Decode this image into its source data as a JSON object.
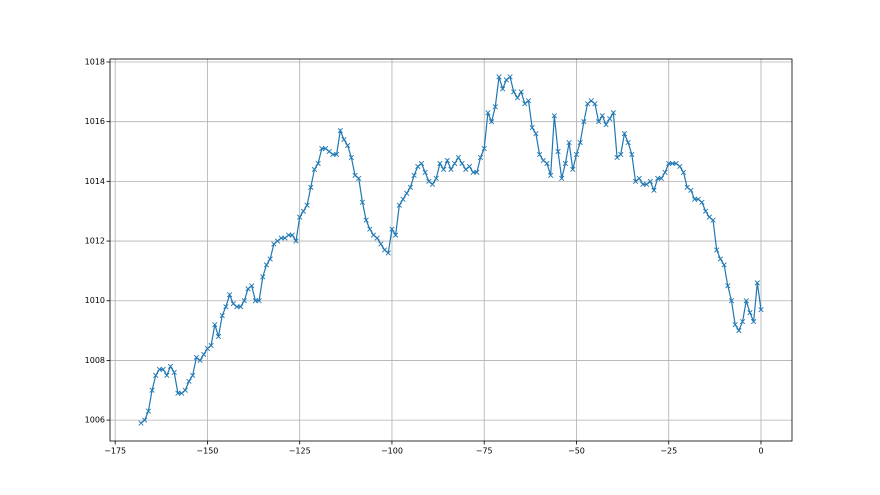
{
  "chart_data": {
    "type": "line",
    "color": "#1f77b4",
    "marker": "x",
    "grid": true,
    "xlim": [
      -176.4,
      8.4
    ],
    "ylim": [
      1005.3,
      1018.1
    ],
    "xticks": [
      {
        "value": -175,
        "label": "−175"
      },
      {
        "value": -150,
        "label": "−150"
      },
      {
        "value": -125,
        "label": "−125"
      },
      {
        "value": -100,
        "label": "−100"
      },
      {
        "value": -75,
        "label": "−75"
      },
      {
        "value": -50,
        "label": "−50"
      },
      {
        "value": -25,
        "label": "−25"
      },
      0
    ],
    "yticks": [
      1006,
      1008,
      1010,
      1012,
      1014,
      1016,
      1018
    ],
    "x": [
      -168,
      -167,
      -166,
      -165,
      -164,
      -163,
      -162,
      -161,
      -160,
      -159,
      -158,
      -157,
      -156,
      -155,
      -154,
      -153,
      -152,
      -151,
      -150,
      -149,
      -148,
      -147,
      -146,
      -145,
      -144,
      -143,
      -142,
      -141,
      -140,
      -139,
      -138,
      -137,
      -136,
      -135,
      -134,
      -133,
      -132,
      -131,
      -130,
      -129,
      -128,
      -127,
      -126,
      -125,
      -124,
      -123,
      -122,
      -121,
      -120,
      -119,
      -118,
      -117,
      -116,
      -115,
      -114,
      -113,
      -112,
      -111,
      -110,
      -109,
      -108,
      -107,
      -106,
      -105,
      -104,
      -103,
      -102,
      -101,
      -100,
      -99,
      -98,
      -97,
      -96,
      -95,
      -94,
      -93,
      -92,
      -91,
      -90,
      -89,
      -88,
      -87,
      -86,
      -85,
      -84,
      -83,
      -82,
      -81,
      -80,
      -79,
      -78,
      -77,
      -76,
      -75,
      -74,
      -73,
      -72,
      -71,
      -70,
      -69,
      -68,
      -67,
      -66,
      -65,
      -64,
      -63,
      -62,
      -61,
      -60,
      -59,
      -58,
      -57,
      -56,
      -55,
      -54,
      -53,
      -52,
      -51,
      -50,
      -49,
      -48,
      -47,
      -46,
      -45,
      -44,
      -43,
      -42,
      -41,
      -40,
      -39,
      -38,
      -37,
      -36,
      -35,
      -34,
      -33,
      -32,
      -31,
      -30,
      -29,
      -28,
      -27,
      -26,
      -25,
      -24,
      -23,
      -22,
      -21,
      -20,
      -19,
      -18,
      -17,
      -16,
      -15,
      -14,
      -13,
      -12,
      -11,
      -10,
      -9,
      -8,
      -7,
      -6,
      -5,
      -4,
      -3,
      -2,
      -1,
      0
    ],
    "values": [
      1005.9,
      1006.0,
      1006.3,
      1007.0,
      1007.5,
      1007.7,
      1007.7,
      1007.5,
      1007.8,
      1007.6,
      1006.9,
      1006.9,
      1007.0,
      1007.3,
      1007.5,
      1008.1,
      1008.0,
      1008.2,
      1008.4,
      1008.5,
      1009.2,
      1008.8,
      1009.5,
      1009.8,
      1010.2,
      1009.9,
      1009.8,
      1009.8,
      1010.0,
      1010.4,
      1010.5,
      1010.0,
      1010.0,
      1010.8,
      1011.2,
      1011.4,
      1011.9,
      1012.0,
      1012.1,
      1012.1,
      1012.2,
      1012.2,
      1012.0,
      1012.8,
      1013.0,
      1013.2,
      1013.8,
      1014.4,
      1014.6,
      1015.1,
      1015.1,
      1015.0,
      1014.9,
      1014.9,
      1015.7,
      1015.4,
      1015.2,
      1014.8,
      1014.2,
      1014.1,
      1013.3,
      1012.7,
      1012.4,
      1012.2,
      1012.1,
      1011.9,
      1011.7,
      1011.6,
      1012.4,
      1012.2,
      1013.2,
      1013.4,
      1013.6,
      1013.8,
      1014.2,
      1014.5,
      1014.6,
      1014.3,
      1014.0,
      1013.9,
      1014.1,
      1014.6,
      1014.4,
      1014.7,
      1014.4,
      1014.6,
      1014.8,
      1014.6,
      1014.4,
      1014.5,
      1014.3,
      1014.3,
      1014.8,
      1015.1,
      1016.3,
      1016.0,
      1016.5,
      1017.5,
      1017.1,
      1017.4,
      1017.5,
      1017.0,
      1016.8,
      1017.0,
      1016.6,
      1016.7,
      1015.8,
      1015.6,
      1014.9,
      1014.7,
      1014.6,
      1014.2,
      1016.2,
      1015.0,
      1014.1,
      1014.6,
      1015.3,
      1014.4,
      1014.9,
      1015.3,
      1016.0,
      1016.6,
      1016.7,
      1016.6,
      1016.0,
      1016.2,
      1015.9,
      1016.1,
      1016.3,
      1014.8,
      1014.9,
      1015.6,
      1015.3,
      1014.9,
      1014.0,
      1014.1,
      1013.9,
      1013.9,
      1014.0,
      1013.7,
      1014.1,
      1014.1,
      1014.3,
      1014.6,
      1014.6,
      1014.6,
      1014.5,
      1014.3,
      1013.8,
      1013.7,
      1013.4,
      1013.4,
      1013.3,
      1013.0,
      1012.8,
      1012.7,
      1011.7,
      1011.4,
      1011.2,
      1010.5,
      1010.0,
      1009.2,
      1009.0,
      1009.3,
      1010.0,
      1009.6,
      1009.3,
      1010.6,
      1009.7
    ]
  }
}
